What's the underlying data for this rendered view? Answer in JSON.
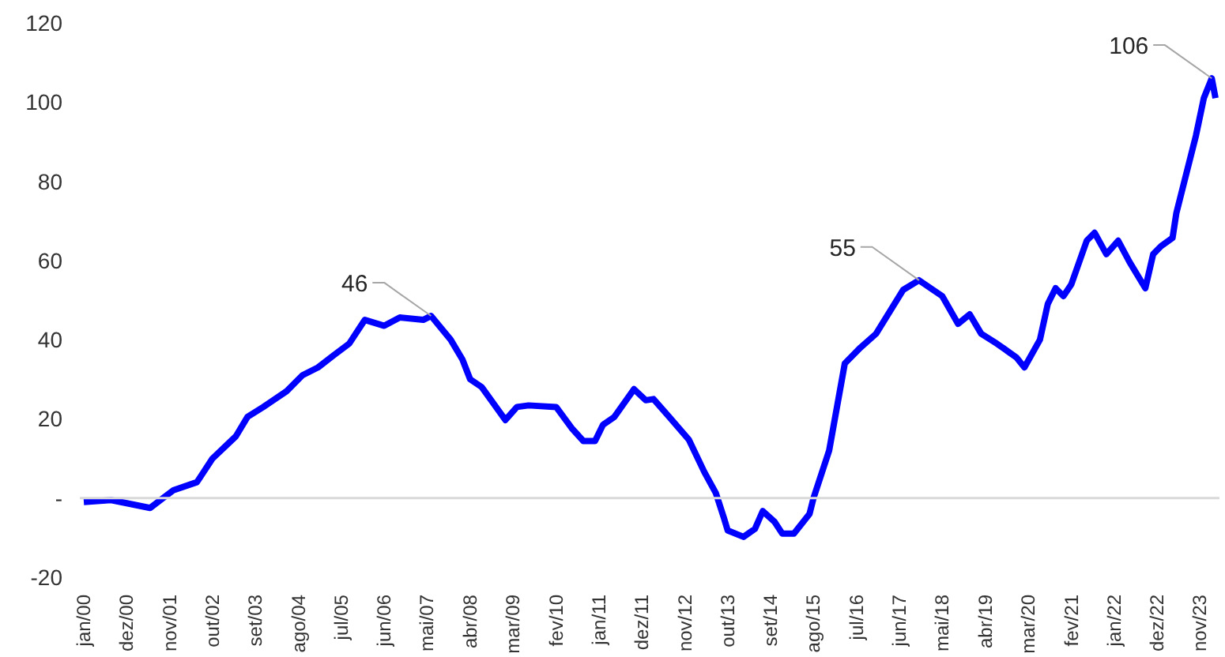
{
  "chart_data": {
    "type": "line",
    "marker": "none",
    "line_style": "solid",
    "grid": false,
    "x": [
      "2000-01",
      "2000-08",
      "2001-06",
      "2001-12",
      "2002-06",
      "2002-10",
      "2003-04",
      "2003-07",
      "2003-11",
      "2004-05",
      "2004-09",
      "2005-01",
      "2005-05",
      "2005-09",
      "2006-01",
      "2006-06",
      "2006-10",
      "2007-04",
      "2007-06",
      "2007-11",
      "2008-02",
      "2008-04",
      "2008-07",
      "2009-01",
      "2009-04",
      "2009-07",
      "2010-02",
      "2010-06",
      "2010-09",
      "2010-12",
      "2011-02",
      "2011-05",
      "2011-10",
      "2012-01",
      "2012-03",
      "2012-07",
      "2012-12",
      "2013-04",
      "2013-07",
      "2013-09",
      "2013-10",
      "2014-02",
      "2014-05",
      "2014-07",
      "2014-10",
      "2014-12",
      "2015-03",
      "2015-07",
      "2015-08",
      "2015-12",
      "2016-04",
      "2016-08",
      "2016-12",
      "2017-07",
      "2017-11",
      "2018-05",
      "2018-09",
      "2018-12",
      "2019-03",
      "2019-07",
      "2019-12",
      "2020-02",
      "2020-06",
      "2020-08",
      "2020-10",
      "2020-12",
      "2021-02",
      "2021-06",
      "2021-08",
      "2021-11",
      "2022-02",
      "2022-05",
      "2022-09",
      "2022-11",
      "2023-01",
      "2023-04",
      "2023-05",
      "2023-10",
      "2023-12",
      "2024-02",
      "2024-03"
    ],
    "series": [
      {
        "color": "#0000ff",
        "values": [
          -1,
          -0.5,
          -2.5,
          2,
          4,
          10,
          15.6,
          20.5,
          23,
          27,
          31,
          33,
          36,
          39,
          45,
          43.5,
          45.6,
          45,
          46,
          40,
          35,
          30,
          28,
          19.7,
          23,
          23.4,
          23,
          17.7,
          14.4,
          14.4,
          18.5,
          20.5,
          27.5,
          24.7,
          25,
          20.5,
          14.8,
          6.6,
          1.2,
          -5,
          -8.2,
          -9.8,
          -7.8,
          -3.3,
          -6,
          -9,
          -9,
          -4,
          0,
          12,
          34,
          38,
          41.5,
          52.6,
          55,
          51,
          44,
          46.4,
          41.5,
          39,
          35.5,
          33,
          40,
          49,
          53,
          51,
          54,
          65,
          67,
          61.6,
          65,
          59.6,
          53,
          61.6,
          63.6,
          65.7,
          72,
          91.6,
          101,
          106,
          101
        ]
      }
    ],
    "annotations": [
      {
        "text": "46",
        "x": "2007-06",
        "y": 46
      },
      {
        "text": "55",
        "x": "2017-11",
        "y": 55
      },
      {
        "text": "106",
        "x": "2024-02",
        "y": 106
      }
    ],
    "ref_lines": [
      {
        "axis": "y",
        "value": 0,
        "color": "#d9d9d9"
      }
    ],
    "xlim": [
      "1999-12",
      "2024-04"
    ],
    "xticks": [
      {
        "value": "2000-01",
        "label": "jan/00"
      },
      {
        "value": "2000-12",
        "label": "dez/00"
      },
      {
        "value": "2001-11",
        "label": "nov/01"
      },
      {
        "value": "2002-10",
        "label": "out/02"
      },
      {
        "value": "2003-09",
        "label": "set/03"
      },
      {
        "value": "2004-08",
        "label": "ago/04"
      },
      {
        "value": "2005-07",
        "label": "jul/05"
      },
      {
        "value": "2006-06",
        "label": "jun/06"
      },
      {
        "value": "2007-05",
        "label": "mai/07"
      },
      {
        "value": "2008-04",
        "label": "abr/08"
      },
      {
        "value": "2009-03",
        "label": "mar/09"
      },
      {
        "value": "2010-02",
        "label": "fev/10"
      },
      {
        "value": "2011-01",
        "label": "jan/11"
      },
      {
        "value": "2011-12",
        "label": "dez/11"
      },
      {
        "value": "2012-11",
        "label": "nov/12"
      },
      {
        "value": "2013-10",
        "label": "out/13"
      },
      {
        "value": "2014-09",
        "label": "set/14"
      },
      {
        "value": "2015-08",
        "label": "ago/15"
      },
      {
        "value": "2016-07",
        "label": "jul/16"
      },
      {
        "value": "2017-06",
        "label": "jun/17"
      },
      {
        "value": "2018-05",
        "label": "mai/18"
      },
      {
        "value": "2019-04",
        "label": "abr/19"
      },
      {
        "value": "2020-03",
        "label": "mar/20"
      },
      {
        "value": "2021-02",
        "label": "fev/21"
      },
      {
        "value": "2022-01",
        "label": "jan/22"
      },
      {
        "value": "2022-12",
        "label": "dez/22"
      },
      {
        "value": "2023-11",
        "label": "nov/23"
      }
    ],
    "ylim": [
      -20,
      120
    ],
    "yticks": [
      -20,
      {
        "value": 0,
        "label": "-"
      },
      20,
      40,
      60,
      80,
      100,
      120
    ]
  }
}
